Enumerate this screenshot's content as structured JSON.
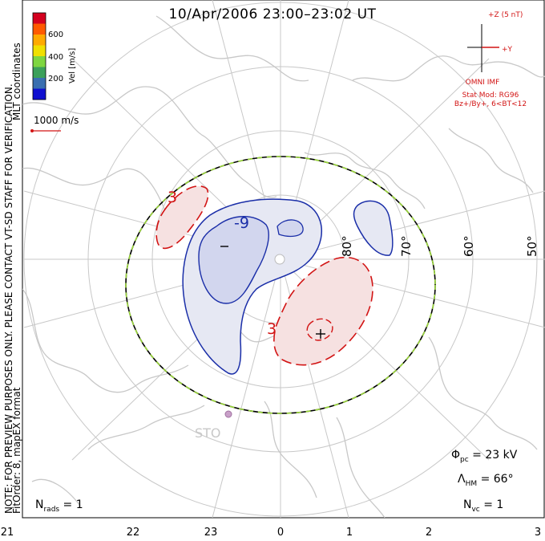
{
  "title": "10/Apr/2006 23:00–23:02 UT",
  "side_note": {
    "line1": "NOTE: FOR PREVIEW PURPOSES ONLY. PLEASE CONTACT VT-SD STAFF FOR VERIFICATION.",
    "line2": "FitOrder: 8, mapEX format",
    "coords": "MLT coordinates"
  },
  "colorbar": {
    "label": "Vel [m/s]",
    "ticks": [
      "600",
      "400",
      "200"
    ],
    "colors": [
      "#d4001f",
      "#ff5a00",
      "#ffaa00",
      "#f0e000",
      "#7ed640",
      "#3ca05a",
      "#3a6fb0",
      "#1010d0"
    ]
  },
  "vector_scale": "1000 m/s",
  "imf": {
    "z_label": "+Z (5 nT)",
    "y_label": "+Y",
    "source": "OMNI IMF",
    "stat_mod": "Stat Mod: RG96",
    "condition": "Bz+/By+, 6<BT<12"
  },
  "latitude_labels": [
    "80°",
    "70°",
    "60°",
    "50°"
  ],
  "mlt_labels": [
    "21",
    "22",
    "23",
    "0",
    "1",
    "2",
    "3"
  ],
  "contours": {
    "neg": "-9",
    "pos_left": "3",
    "pos_bottom": "3",
    "min_marker": "–",
    "max_marker": "+"
  },
  "station": "STO",
  "stats": {
    "phi_pc": "23 kV",
    "lambda_hm": "66°",
    "n_rads": "1",
    "n_vc": "1"
  },
  "style_colors": {
    "negative": "#1a2ea8",
    "positive": "#d21414",
    "boundary": "#9ad63a",
    "coast": "#c8c8c8"
  }
}
